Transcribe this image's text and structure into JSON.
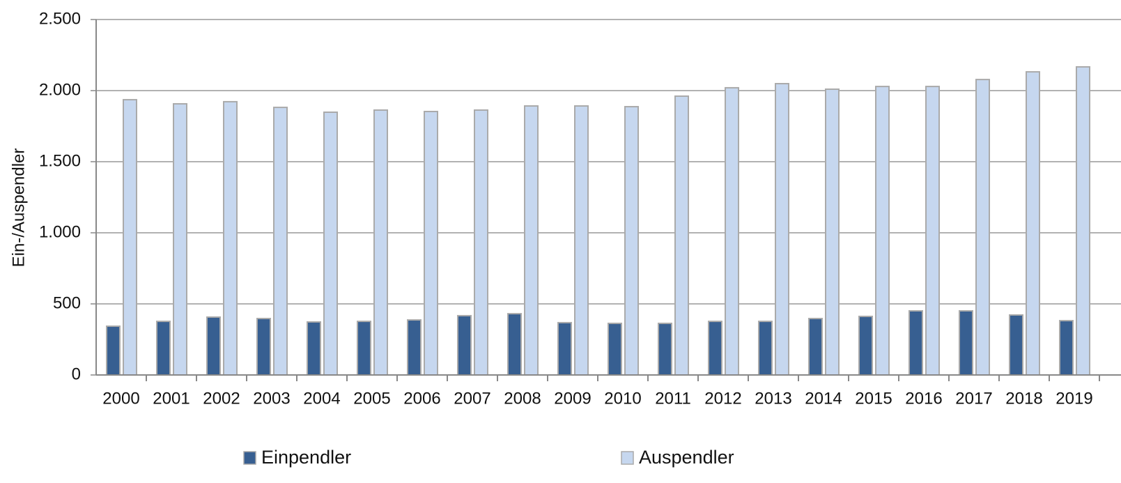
{
  "chart_data": {
    "type": "bar",
    "y_label": "Ein-/Auspendler",
    "categories": [
      "2000",
      "2001",
      "2002",
      "2003",
      "2004",
      "2005",
      "2006",
      "2007",
      "2008",
      "2009",
      "2010",
      "2011",
      "2012",
      "2013",
      "2014",
      "2015",
      "2016",
      "2017",
      "2018",
      "2019"
    ],
    "series": [
      {
        "name": "Einpendler",
        "color": "#375f91",
        "values": [
          343,
          377,
          407,
          397,
          373,
          377,
          387,
          417,
          431,
          368,
          363,
          363,
          377,
          377,
          397,
          412,
          451,
          451,
          422,
          382
        ]
      },
      {
        "name": "Auspendler",
        "color": "#c6d7ef",
        "values": [
          1936,
          1907,
          1922,
          1882,
          1848,
          1863,
          1853,
          1863,
          1892,
          1892,
          1887,
          1961,
          2020,
          2049,
          2010,
          2029,
          2029,
          2078,
          2132,
          2167
        ]
      }
    ],
    "ylim": [
      0,
      2500
    ],
    "yticks": [
      0,
      500,
      {
        "value": 1000,
        "label": "1.000"
      },
      {
        "value": 1500,
        "label": "1.500"
      },
      {
        "value": 2000,
        "label": "2.000"
      },
      {
        "value": 2500,
        "label": "2.500"
      }
    ],
    "grid": true
  }
}
